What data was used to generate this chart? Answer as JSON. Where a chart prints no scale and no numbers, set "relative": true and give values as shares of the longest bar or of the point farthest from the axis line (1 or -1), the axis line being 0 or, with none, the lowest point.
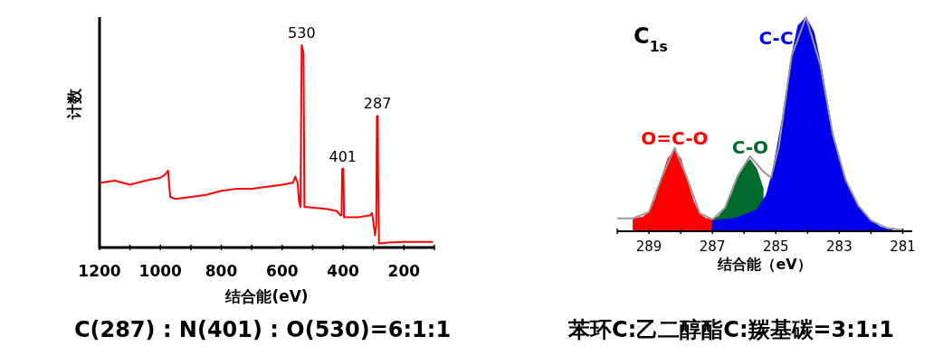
{
  "chart_data": [
    {
      "type": "line",
      "xlabel": "结合能(eV)",
      "ylabel": "计数",
      "relative": true,
      "xlim": [
        1200,
        100
      ],
      "xticks": [
        1200,
        {
          "value": 1100,
          "label": null
        },
        1000,
        {
          "value": 900,
          "label": null
        },
        800,
        {
          "value": 700,
          "label": null
        },
        600,
        {
          "value": 500,
          "label": null
        },
        400,
        {
          "value": 300,
          "label": null
        },
        200,
        {
          "value": 100,
          "label": null
        }
      ],
      "series": [
        {
          "color": "#ff0000",
          "x": [
            1195,
            1150,
            1100,
            1050,
            1000,
            985,
            975,
            968,
            950,
            900,
            850,
            800,
            750,
            700,
            650,
            600,
            565,
            557,
            549,
            545,
            540,
            536,
            530,
            527,
            520,
            450,
            420,
            410,
            405,
            403,
            399,
            397,
            350,
            310,
            305,
            300,
            295,
            291,
            289,
            286,
            285,
            282,
            250,
            200,
            150,
            105
          ],
          "values": [
            0.32,
            0.33,
            0.31,
            0.33,
            0.345,
            0.36,
            0.38,
            0.25,
            0.24,
            0.25,
            0.26,
            0.28,
            0.29,
            0.29,
            0.3,
            0.31,
            0.32,
            0.35,
            0.32,
            0.23,
            0.2,
            1.0,
            0.96,
            0.2,
            0.2,
            0.19,
            0.18,
            0.16,
            0.16,
            0.39,
            0.39,
            0.15,
            0.15,
            0.16,
            0.17,
            0.12,
            0.06,
            0.11,
            0.65,
            0.65,
            0.37,
            0.02,
            0.025,
            0.028,
            0.028,
            0.028
          ]
        }
      ],
      "annotations": [
        {
          "text": "530",
          "x": 536,
          "y": 1.0
        },
        {
          "text": "401",
          "x": 401,
          "y": 0.39
        },
        {
          "text": "287",
          "x": 287,
          "y": 0.65
        },
        "C(287) : N(401) : O(530)=6:1:1"
      ]
    },
    {
      "type": "area",
      "title": "C$_{1s}$",
      "xlabel": "结合能（eV）",
      "relative": true,
      "xlim": [
        290,
        280.7
      ],
      "xticks": [
        {
          "value": 290,
          "label": null
        },
        289,
        {
          "value": 288,
          "label": null
        },
        287,
        {
          "value": 286,
          "label": null
        },
        285,
        {
          "value": 284,
          "label": null
        },
        283,
        {
          "value": 282,
          "label": null
        },
        281
      ],
      "series": [
        {
          "name": "O=C-O",
          "color": "#ff0000",
          "x": [
            289.5,
            289.2,
            289.0,
            288.8,
            288.6,
            288.4,
            288.19,
            288.0,
            287.8,
            287.6,
            287.4,
            287.2,
            287.0
          ],
          "values": [
            0.06,
            0.065,
            0.09,
            0.15,
            0.25,
            0.34,
            0.377,
            0.34,
            0.24,
            0.14,
            0.08,
            0.06,
            0.055
          ]
        },
        {
          "name": "C-O",
          "color": "#006b2d",
          "x": [
            287.0,
            286.8,
            286.6,
            286.4,
            286.2,
            286.0,
            285.81,
            285.6,
            285.4
          ],
          "values": [
            0.055,
            0.07,
            0.11,
            0.17,
            0.25,
            0.31,
            0.335,
            0.29,
            0.2
          ]
        },
        {
          "name": "C-C",
          "color": "#0000ee",
          "x": [
            287.0,
            286.3,
            285.6,
            285.3,
            285.1,
            284.8,
            284.5,
            284.3,
            284.05,
            283.8,
            283.57,
            283.2,
            282.8,
            282.4,
            282.0,
            281.7,
            281.3
          ],
          "values": [
            0.05,
            0.06,
            0.1,
            0.17,
            0.28,
            0.52,
            0.82,
            0.96,
            1.0,
            0.93,
            0.77,
            0.45,
            0.24,
            0.12,
            0.05,
            0.02,
            0.005
          ]
        },
        {
          "type": "line",
          "color": "#999999",
          "x": [
            290,
            289.5,
            289,
            288.6,
            288.19,
            287.8,
            287.4,
            287.0,
            286.6,
            286.2,
            285.81,
            285.4,
            285.15,
            284.9,
            284.5,
            284.05,
            283.6,
            283.2,
            282.8,
            282.4,
            282,
            281.5,
            281
          ],
          "values": [
            0.06,
            0.06,
            0.09,
            0.25,
            0.39,
            0.25,
            0.085,
            0.055,
            0.11,
            0.26,
            0.35,
            0.28,
            0.25,
            0.4,
            0.82,
            1.0,
            0.78,
            0.45,
            0.24,
            0.12,
            0.05,
            0.015,
            0.005
          ]
        }
      ],
      "annotations": [
        "苯环C:乙二醇酯C:羰基碳=3:1:1"
      ]
    }
  ]
}
